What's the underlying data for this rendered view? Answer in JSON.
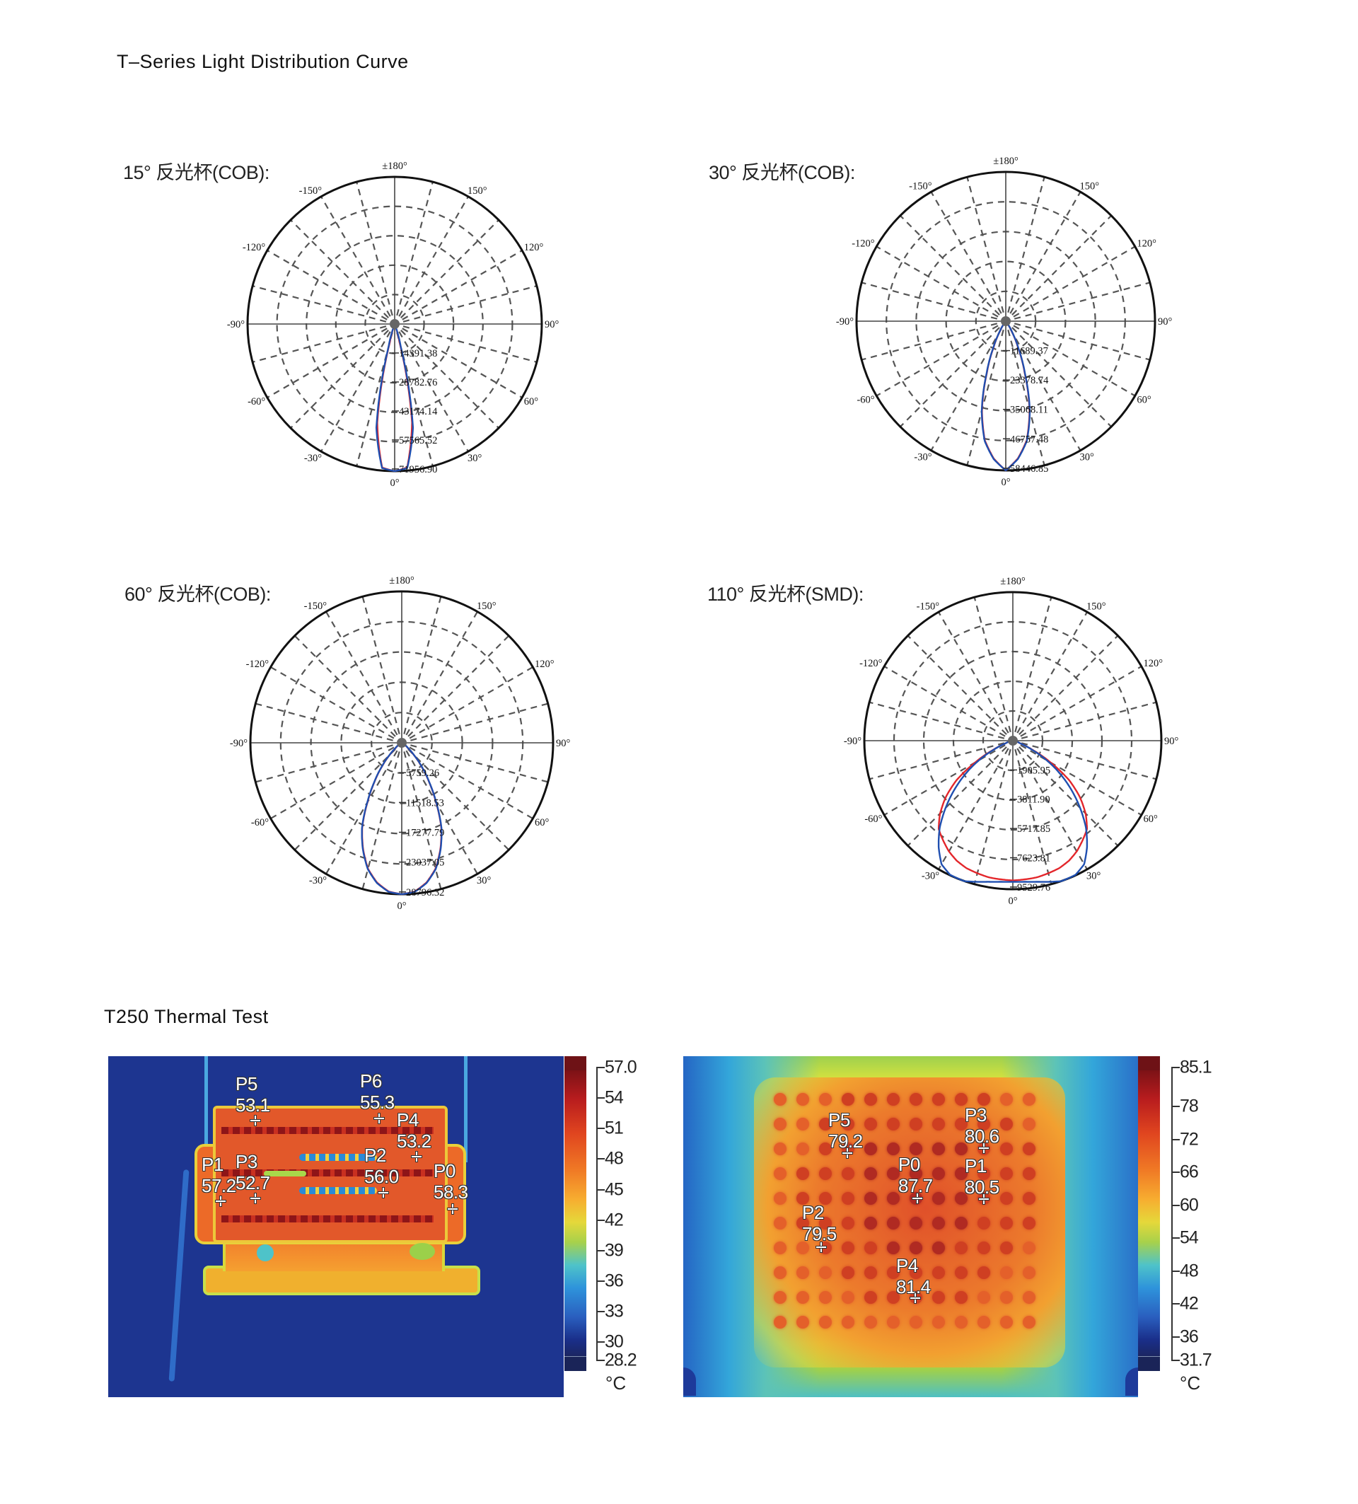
{
  "section1_title": "T–Series  Light  Distribution  Curve",
  "section2_title": "T250  Thermal  Test",
  "chart_data": [
    {
      "type": "polar",
      "title": "15° 反光杯(COB):",
      "radial_max": 71956.9,
      "radial_ticks": [
        "14391.38",
        "28782.76",
        "43174.14",
        "57565.52",
        "71956.90"
      ],
      "angular_ticks": [
        "0°",
        "30°",
        "60°",
        "90°",
        "120°",
        "150°",
        "±180°",
        "-150°",
        "-120°",
        "-90°",
        "-60°",
        "-30°"
      ],
      "grid": true,
      "series": [
        {
          "color": "#e3262b",
          "angles": [
            0,
            5,
            10,
            15,
            20,
            25,
            90
          ],
          "values": [
            71957,
            70450,
            48930,
            8700,
            60,
            0,
            0
          ]
        },
        {
          "color": "#1f4fb0",
          "angles": [
            0,
            5,
            10,
            15,
            20,
            25,
            90
          ],
          "values": [
            71957,
            70700,
            51500,
            11500,
            200,
            0,
            0
          ]
        }
      ]
    },
    {
      "type": "polar",
      "title": "30° 反光杯(COB):",
      "radial_max": 58446.85,
      "radial_ticks": [
        "11689.37",
        "23378.74",
        "35068.11",
        "46757.48",
        "58446.85"
      ],
      "angular_ticks": [
        "0°",
        "30°",
        "60°",
        "90°",
        "120°",
        "150°",
        "±180°",
        "-150°",
        "-120°",
        "-90°",
        "-60°",
        "-30°"
      ],
      "grid": true,
      "series": [
        {
          "color": "#e3262b",
          "angles": [
            0,
            5,
            10,
            15,
            20,
            25,
            30,
            35,
            40,
            45,
            90
          ],
          "values": [
            58447,
            54000,
            47300,
            36000,
            21800,
            11300,
            4900,
            1400,
            300,
            0,
            0
          ]
        },
        {
          "color": "#1f4fb0",
          "angles": [
            0,
            5,
            10,
            15,
            20,
            25,
            30,
            35,
            40,
            45,
            90
          ],
          "values": [
            58447,
            54200,
            47600,
            36400,
            22200,
            11700,
            5100,
            1600,
            300,
            0,
            0
          ]
        }
      ]
    },
    {
      "type": "polar",
      "title": "60° 反光杯(COB):",
      "radial_max": 28796.32,
      "radial_ticks": [
        "5759.26",
        "11518.53",
        "17277.79",
        "23037.05",
        "28796.32"
      ],
      "angular_ticks": [
        "0°",
        "30°",
        "60°",
        "90°",
        "120°",
        "150°",
        "±180°",
        "-150°",
        "-120°",
        "-90°",
        "-60°",
        "-30°"
      ],
      "grid": true,
      "series": [
        {
          "color": "#e3262b",
          "angles": [
            0,
            5,
            10,
            15,
            20,
            25,
            30,
            35,
            40,
            45,
            50,
            60,
            70,
            90
          ],
          "values": [
            28796,
            28400,
            27000,
            24800,
            21500,
            17800,
            13000,
            9000,
            5800,
            3200,
            1500,
            200,
            0,
            0
          ]
        },
        {
          "color": "#1f4fb0",
          "angles": [
            0,
            5,
            10,
            15,
            20,
            25,
            30,
            35,
            40,
            45,
            50,
            60,
            70,
            90
          ],
          "values": [
            28796,
            28450,
            27100,
            24900,
            21600,
            17900,
            13100,
            9100,
            5900,
            3300,
            1600,
            200,
            0,
            0
          ]
        }
      ]
    },
    {
      "type": "polar",
      "title": "110° 反光杯(SMD):",
      "radial_max": 9529.76,
      "radial_ticks": [
        "1905.95",
        "3811.90",
        "5717.85",
        "7623.81",
        "9529.76"
      ],
      "angular_ticks": [
        "0°",
        "30°",
        "60°",
        "90°",
        "120°",
        "150°",
        "±180°",
        "-150°",
        "-120°",
        "-90°",
        "-60°",
        "-30°"
      ],
      "grid": true,
      "series": [
        {
          "color": "#e3262b",
          "angles": [
            0,
            10,
            20,
            25,
            30,
            35,
            40,
            45,
            50,
            55,
            60,
            65,
            70,
            80,
            90
          ],
          "values": [
            8960,
            8900,
            8700,
            8500,
            8200,
            7800,
            7400,
            6600,
            5600,
            4400,
            2800,
            1400,
            500,
            100,
            0
          ]
        },
        {
          "color": "#1f4fb0",
          "angles": [
            0,
            5,
            10,
            15,
            19,
            25,
            30,
            35,
            40,
            45,
            50,
            55,
            60,
            65,
            70,
            80,
            90
          ],
          "values": [
            9050,
            9085,
            9190,
            9370,
            9530,
            9500,
            9150,
            8300,
            7300,
            6100,
            4900,
            3700,
            2500,
            1300,
            500,
            100,
            0
          ]
        }
      ]
    }
  ],
  "thermal": [
    {
      "scale_ticks": [
        "57.0",
        "54",
        "51",
        "48",
        "45",
        "42",
        "39",
        "36",
        "33",
        "30",
        "28.2"
      ],
      "scale_values": [
        57.0,
        54,
        51,
        48,
        45,
        42,
        39,
        36,
        33,
        30,
        28.2
      ],
      "scale_range": [
        28.2,
        57.0
      ],
      "unit": "°C",
      "points": [
        {
          "label": "P0",
          "value": "58.3"
        },
        {
          "label": "P1",
          "value": "57.2"
        },
        {
          "label": "P2",
          "value": "56.0"
        },
        {
          "label": "P3",
          "value": "52.7"
        },
        {
          "label": "P4",
          "value": "53.2"
        },
        {
          "label": "P5",
          "value": "53.1"
        },
        {
          "label": "P6",
          "value": "55.3"
        }
      ]
    },
    {
      "scale_ticks": [
        "85.1",
        "78",
        "72",
        "66",
        "60",
        "54",
        "48",
        "42",
        "36",
        "31.7"
      ],
      "scale_values": [
        85.1,
        78,
        72,
        66,
        60,
        54,
        48,
        42,
        36,
        31.7
      ],
      "scale_range": [
        31.7,
        85.1
      ],
      "unit": "°C",
      "points": [
        {
          "label": "P0",
          "value": "87.7"
        },
        {
          "label": "P1",
          "value": "80.5"
        },
        {
          "label": "P2",
          "value": "79.5"
        },
        {
          "label": "P3",
          "value": "80.6"
        },
        {
          "label": "P4",
          "value": "81.4"
        },
        {
          "label": "P5",
          "value": "79.2"
        }
      ]
    }
  ]
}
